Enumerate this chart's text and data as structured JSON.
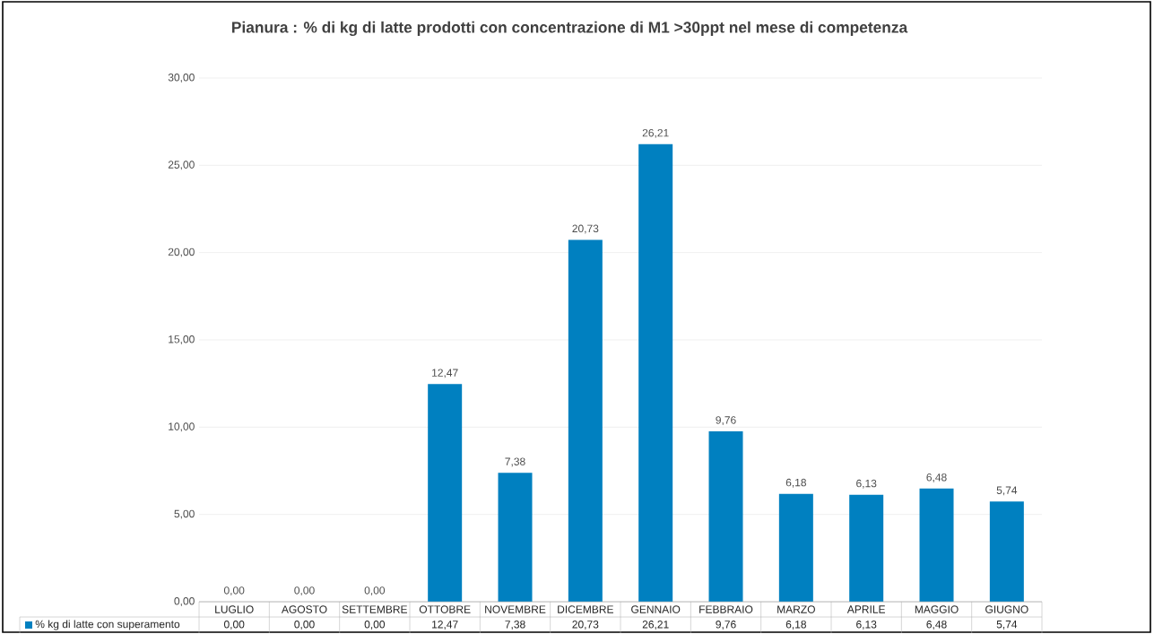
{
  "chart_data": {
    "type": "bar",
    "title": "Pianura : % di kg di latte prodotti con concentrazione di M1 >30ppt nel mese di competenza",
    "categories": [
      "LUGLIO",
      "AGOSTO",
      "SETTEMBRE",
      "OTTOBRE",
      "NOVEMBRE",
      "DICEMBRE",
      "GENNAIO",
      "FEBBRAIO",
      "MARZO",
      "APRILE",
      "MAGGIO",
      "GIUGNO"
    ],
    "series": [
      {
        "name": "% kg di latte con superamento",
        "color": "#0080c0",
        "values": [
          0,
          0,
          0,
          12.47,
          7.38,
          20.73,
          26.21,
          9.76,
          6.18,
          6.13,
          6.48,
          5.74
        ],
        "value_labels": [
          "0,00",
          "0,00",
          "0,00",
          "12,47",
          "7,38",
          "20,73",
          "26,21",
          "9,76",
          "6,18",
          "6,13",
          "6,48",
          "5,74"
        ]
      }
    ],
    "ylim": [
      0,
      30
    ],
    "yticks": [
      {
        "value": 0,
        "label": "0,00"
      },
      {
        "value": 5,
        "label": "5,00"
      },
      {
        "value": 10,
        "label": "10,00"
      },
      {
        "value": 15,
        "label": "15,00"
      },
      {
        "value": 20,
        "label": "20,00"
      },
      {
        "value": 25,
        "label": "25,00"
      },
      {
        "value": 30,
        "label": "30,00"
      }
    ],
    "grid": "y",
    "legend": "bottom"
  }
}
